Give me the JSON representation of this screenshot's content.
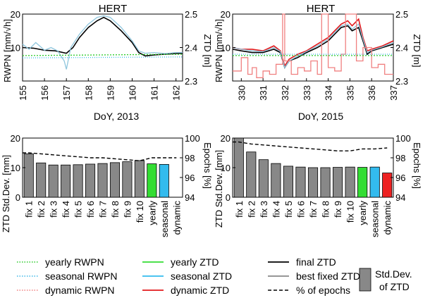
{
  "chart_data": [
    {
      "type": "line",
      "title": "HERT",
      "xlabel": "DoY, 2013",
      "ylabel_left": "RWPN [mm/√h]",
      "ylabel_right": "ZTD [m]",
      "xlim": [
        155,
        162.3
      ],
      "ylim_left": [
        0,
        20
      ],
      "ylim_right": [
        2.3,
        2.5
      ],
      "x_ticks": [
        "155",
        "156",
        "157",
        "158",
        "159",
        "160",
        "161",
        "162"
      ],
      "y_left_ticks": [
        "0",
        "10",
        "20"
      ],
      "y_right_ticks": [
        "2.3",
        "2.4",
        "2.5"
      ],
      "series": [
        {
          "name": "final ZTD",
          "axis": "right",
          "color": "#000000",
          "x": [
            155,
            155.5,
            156,
            156.5,
            157,
            157.3,
            157.6,
            158,
            158.4,
            158.7,
            159,
            159.5,
            160,
            160.3,
            160.6,
            161,
            161.5,
            162,
            162.3
          ],
          "y": [
            2.4,
            2.398,
            2.392,
            2.39,
            2.383,
            2.4,
            2.43,
            2.46,
            2.48,
            2.49,
            2.48,
            2.45,
            2.415,
            2.385,
            2.375,
            2.378,
            2.38,
            2.382,
            2.383
          ]
        },
        {
          "name": "best fixed ZTD",
          "axis": "right",
          "color": "#8fc6dd",
          "x": [
            155,
            155.3,
            155.6,
            156,
            156.3,
            156.6,
            156.9,
            157,
            157.2,
            157.6,
            158,
            158.4,
            158.7,
            159,
            159.5,
            160,
            160.3,
            160.6,
            161,
            161.5,
            162,
            162.3
          ],
          "y": [
            2.41,
            2.395,
            2.415,
            2.392,
            2.4,
            2.39,
            2.36,
            2.335,
            2.4,
            2.44,
            2.47,
            2.49,
            2.495,
            2.49,
            2.46,
            2.42,
            2.39,
            2.383,
            2.385,
            2.382,
            2.385,
            2.385
          ]
        },
        {
          "name": "yearly RWPN",
          "axis": "left",
          "color": "#2ccc2c",
          "dash": "2,2",
          "x": [
            155,
            162.3
          ],
          "y": [
            7.6,
            8.0
          ]
        },
        {
          "name": "seasonal RWPN",
          "axis": "left",
          "color": "#3fb8e8",
          "dash": "1,2",
          "x": [
            155,
            162.3
          ],
          "y": [
            6.9,
            7.2
          ]
        }
      ]
    },
    {
      "type": "line",
      "title": "HERT",
      "xlabel": "DoY, 2015",
      "ylabel_left": "RWPN [mm/√h]",
      "ylabel_right": "ZTD [m]",
      "xlim": [
        329.6,
        337
      ],
      "ylim_left": [
        0,
        20
      ],
      "ylim_right": [
        2.3,
        2.5
      ],
      "x_ticks": [
        "330",
        "331",
        "332",
        "333",
        "334",
        "335",
        "336",
        "337"
      ],
      "y_left_ticks": [
        "0",
        "10",
        "20"
      ],
      "y_right_ticks": [
        "2.3",
        "2.4",
        "2.5"
      ],
      "series": [
        {
          "name": "final ZTD",
          "axis": "right",
          "color": "#000000",
          "x": [
            329.6,
            330,
            330.5,
            331,
            331.5,
            331.8,
            332,
            332.2,
            332.6,
            333,
            333.5,
            334,
            334.3,
            334.6,
            334.9,
            335.1,
            335.4,
            335.6,
            335.8,
            336,
            336.5,
            337
          ],
          "y": [
            2.395,
            2.39,
            2.385,
            2.385,
            2.395,
            2.385,
            2.34,
            2.36,
            2.37,
            2.385,
            2.4,
            2.42,
            2.44,
            2.46,
            2.465,
            2.45,
            2.46,
            2.42,
            2.38,
            2.39,
            2.4,
            2.41
          ]
        },
        {
          "name": "dynamic ZTD",
          "axis": "right",
          "color": "#e31a1c",
          "x": [
            329.6,
            330,
            330.5,
            331,
            331.5,
            331.8,
            332,
            332.2,
            332.6,
            333,
            333.5,
            334,
            334.3,
            334.6,
            334.9,
            335.1,
            335.4,
            335.6,
            335.8,
            336,
            336.5,
            337
          ],
          "y": [
            2.4,
            2.395,
            2.395,
            2.39,
            2.405,
            2.39,
            2.345,
            2.365,
            2.38,
            2.39,
            2.41,
            2.43,
            2.45,
            2.47,
            2.48,
            2.465,
            2.485,
            2.43,
            2.39,
            2.395,
            2.405,
            2.42
          ]
        },
        {
          "name": "best fixed ZTD",
          "axis": "right",
          "color": "#8fc6dd",
          "x": [
            329.6,
            330,
            330.5,
            331,
            331.5,
            331.8,
            332,
            332.2,
            332.6,
            333,
            333.5,
            334,
            334.3,
            334.6,
            334.9,
            335.1,
            335.4,
            335.6,
            335.8,
            336,
            336.5,
            337
          ],
          "y": [
            2.4,
            2.395,
            2.39,
            2.388,
            2.4,
            2.388,
            2.34,
            2.36,
            2.375,
            2.388,
            2.405,
            2.425,
            2.445,
            2.465,
            2.47,
            2.455,
            2.47,
            2.425,
            2.385,
            2.392,
            2.402,
            2.415
          ]
        },
        {
          "name": "dynamic RWPN",
          "axis": "left",
          "color": "#f08080",
          "step": true,
          "x": [
            329.6,
            330,
            330.3,
            330.5,
            330.7,
            331,
            331.3,
            331.6,
            331.9,
            332,
            332.3,
            332.6,
            332.9,
            333.2,
            333.5,
            333.7,
            334,
            334.3,
            334.6,
            334.8,
            335,
            335.3,
            335.6,
            336,
            336.3,
            336.6,
            337
          ],
          "y": [
            3,
            7,
            2,
            4,
            1,
            3,
            2,
            5,
            20,
            6,
            2,
            4,
            3,
            6,
            2,
            20,
            4,
            3,
            8,
            20,
            20,
            6,
            10,
            4,
            5,
            2,
            2
          ]
        },
        {
          "name": "seasonal RWPN",
          "axis": "left",
          "color": "#3fb8e8",
          "dash": "1,2",
          "x": [
            329.6,
            337
          ],
          "y": [
            8.0,
            8.0
          ]
        },
        {
          "name": "yearly RWPN",
          "axis": "left",
          "color": "#2ccc2c",
          "dash": "2,2",
          "x": [
            329.6,
            337
          ],
          "y": [
            7.6,
            7.6
          ]
        }
      ]
    },
    {
      "type": "bar",
      "ylabel_left": "ZTD Std.Dev. [mm]",
      "ylabel_right": "Epochs [%]",
      "categories": [
        "fix 1",
        "fix 2",
        "fix 3",
        "fix 4",
        "fix 5",
        "fix 6",
        "fix 7",
        "fix 8",
        "fix 9",
        "fix 10",
        "yearly",
        "seasonal",
        "dynamic"
      ],
      "values": [
        14.7,
        11.6,
        10.9,
        10.9,
        11.0,
        11.2,
        11.4,
        11.7,
        12.0,
        12.4,
        11.3,
        11.1,
        0
      ],
      "bar_colors": [
        "#888888",
        "#888888",
        "#888888",
        "#888888",
        "#888888",
        "#888888",
        "#888888",
        "#888888",
        "#888888",
        "#888888",
        "#33dd33",
        "#33bbee",
        "#ee2222"
      ],
      "epochs_percent": [
        98.5,
        98.4,
        98.3,
        98.2,
        98.1,
        98.0,
        98.0,
        97.9,
        97.8,
        97.7,
        98.0,
        98.0,
        98.0
      ],
      "ylim_left": [
        0,
        20
      ],
      "ylim_right": [
        94,
        100
      ],
      "y_left_ticks": [
        "0",
        "10",
        "20"
      ],
      "y_right_ticks": [
        "94",
        "96",
        "98",
        "100"
      ]
    },
    {
      "type": "bar",
      "ylabel_left": "ZTD Std.Dev. [mm]",
      "ylabel_right": "Epochs [%]",
      "categories": [
        "fix 1",
        "fix 2",
        "fix 3",
        "fix 4",
        "fix 5",
        "fix 6",
        "fix 7",
        "fix 8",
        "fix 9",
        "fix 10",
        "yearly",
        "seasonal",
        "dynamic"
      ],
      "values": [
        20.0,
        15.3,
        12.7,
        11.4,
        10.5,
        10.2,
        10.0,
        10.0,
        10.1,
        10.2,
        10.1,
        10.2,
        8.2
      ],
      "bar_colors": [
        "#888888",
        "#888888",
        "#888888",
        "#888888",
        "#888888",
        "#888888",
        "#888888",
        "#888888",
        "#888888",
        "#888888",
        "#33dd33",
        "#33bbee",
        "#ee2222"
      ],
      "epochs_percent": [
        99.6,
        99.4,
        99.3,
        99.2,
        99.1,
        99.0,
        98.9,
        98.8,
        98.7,
        98.7,
        98.9,
        98.9,
        99.0
      ],
      "ylim_left": [
        0,
        20
      ],
      "ylim_right": [
        94,
        100
      ],
      "y_left_ticks": [
        "0",
        "10",
        "20"
      ],
      "y_right_ticks": [
        "94",
        "96",
        "98",
        "100"
      ]
    }
  ],
  "legend": [
    {
      "label": "yearly RWPN",
      "color": "#2ccc2c",
      "style": "dotted"
    },
    {
      "label": "seasonal RWPN",
      "color": "#3fb8e8",
      "style": "dotted"
    },
    {
      "label": "dynamic RWPN",
      "color": "#f08080",
      "style": "dotted"
    },
    {
      "label": "yearly ZTD",
      "color": "#33dd33",
      "style": "solid"
    },
    {
      "label": "seasonal ZTD",
      "color": "#33bbee",
      "style": "solid"
    },
    {
      "label": "dynamic ZTD",
      "color": "#e31a1c",
      "style": "solid"
    },
    {
      "label": "final ZTD",
      "color": "#000000",
      "style": "solid"
    },
    {
      "label": "best fixed ZTD",
      "color": "#888888",
      "style": "solid"
    },
    {
      "label": "% of epochs",
      "color": "#000000",
      "style": "dashed"
    }
  ],
  "legend_box": {
    "line1": "Std.Dev.",
    "line2": "of ZTD",
    "color": "#888888"
  }
}
